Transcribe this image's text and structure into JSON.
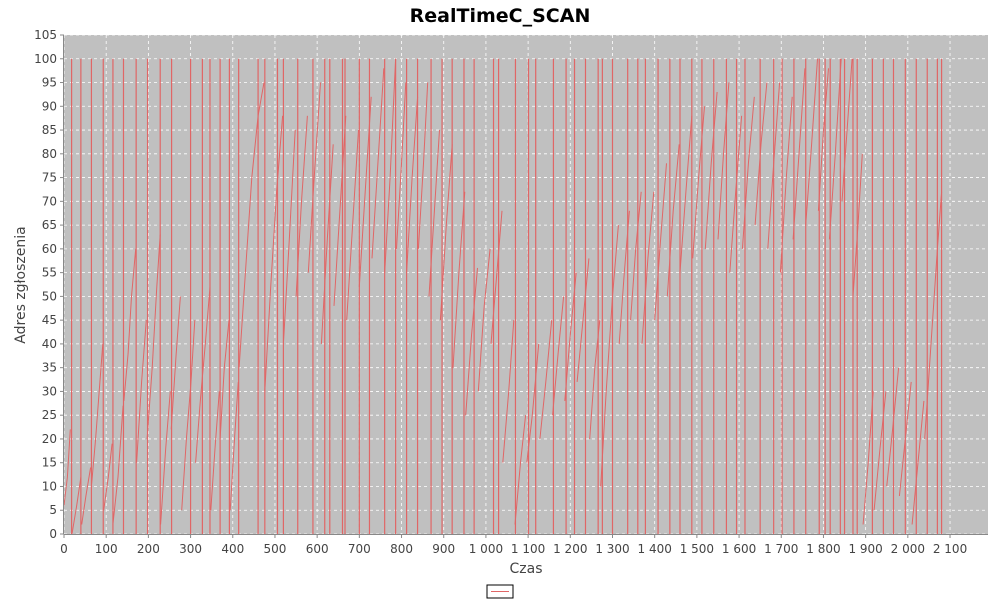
{
  "chart_data": {
    "type": "line",
    "title": "RealTimeC_SCAN",
    "xlabel": "Czas",
    "ylabel": "Adres zgłoszenia",
    "xlim": [
      0,
      2190
    ],
    "ylim": [
      0,
      105
    ],
    "x_ticks": [
      0,
      100,
      200,
      300,
      400,
      500,
      600,
      700,
      800,
      900,
      1000,
      1100,
      1200,
      1300,
      1400,
      1500,
      1600,
      1700,
      1800,
      1900,
      2000,
      2100
    ],
    "x_tick_labels": [
      "0",
      "100",
      "200",
      "300",
      "400",
      "500",
      "600",
      "700",
      "800",
      "900",
      "1 000",
      "1 100",
      "1 200",
      "1 300",
      "1 400",
      "1 500",
      "1 600",
      "1 700",
      "1 800",
      "1 900",
      "2 000",
      "2 100"
    ],
    "y_ticks": [
      0,
      5,
      10,
      15,
      20,
      25,
      30,
      35,
      40,
      45,
      50,
      55,
      60,
      65,
      70,
      75,
      80,
      85,
      90,
      95,
      100,
      105
    ],
    "grid": true,
    "legend": "bottom-center",
    "colors": {
      "series": "#e06666",
      "plot_bg": "#c0c0c0",
      "grid": "#ffffff"
    },
    "series": [
      {
        "segments": [
          [
            [
              0,
              6
            ],
            [
              8,
              12
            ],
            [
              15,
              22
            ]
          ],
          [
            [
              19,
              0
            ],
            [
              30,
              6
            ],
            [
              40,
              12
            ]
          ],
          [
            [
              42,
              2
            ],
            [
              52,
              8
            ],
            [
              63,
              14
            ]
          ],
          [
            [
              65,
              10
            ],
            [
              75,
              20
            ],
            [
              85,
              32
            ],
            [
              92,
              40
            ]
          ],
          [
            [
              94,
              5
            ],
            [
              105,
              12
            ],
            [
              114,
              19
            ]
          ],
          [
            [
              116,
              2
            ],
            [
              128,
              12
            ],
            [
              140,
              27
            ]
          ],
          [
            [
              142,
              28
            ],
            [
              152,
              38
            ],
            [
              160,
              50
            ],
            [
              170,
              60
            ]
          ],
          [
            [
              172,
              15
            ],
            [
              184,
              32
            ],
            [
              195,
              45
            ]
          ],
          [
            [
              197,
              20
            ],
            [
              209,
              35
            ],
            [
              220,
              52
            ],
            [
              228,
              63
            ]
          ],
          [
            [
              229,
              2
            ],
            [
              241,
              18
            ],
            [
              252,
              30
            ]
          ],
          [
            [
              254,
              22
            ],
            [
              266,
              38
            ],
            [
              276,
              50
            ]
          ],
          [
            [
              279,
              5
            ],
            [
              290,
              20
            ],
            [
              301,
              32
            ],
            [
              310,
              45
            ]
          ],
          [
            [
              312,
              15
            ],
            [
              323,
              28
            ],
            [
              335,
              40
            ],
            [
              346,
              52
            ]
          ],
          [
            [
              348,
              5
            ],
            [
              358,
              18
            ],
            [
              368,
              30
            ]
          ],
          [
            [
              370,
              20
            ],
            [
              380,
              35
            ],
            [
              391,
              45
            ]
          ],
          [
            [
              394,
              5
            ],
            [
              404,
              20
            ],
            [
              413,
              32
            ]
          ],
          [
            [
              415,
              35
            ],
            [
              430,
              55
            ],
            [
              445,
              75
            ],
            [
              460,
              88
            ],
            [
              474,
              95
            ]
          ],
          [
            [
              476,
              30
            ],
            [
              490,
              52
            ],
            [
              504,
              72
            ],
            [
              518,
              88
            ]
          ],
          [
            [
              520,
              40
            ],
            [
              534,
              62
            ],
            [
              548,
              85
            ]
          ],
          [
            [
              550,
              50
            ],
            [
              563,
              70
            ],
            [
              577,
              88
            ]
          ],
          [
            [
              579,
              55
            ],
            [
              593,
              75
            ],
            [
              608,
              95
            ]
          ],
          [
            [
              610,
              40
            ],
            [
              624,
              62
            ],
            [
              638,
              82
            ]
          ],
          [
            [
              640,
              48
            ],
            [
              654,
              68
            ],
            [
              668,
              88
            ]
          ],
          [
            [
              670,
              45
            ],
            [
              684,
              65
            ],
            [
              698,
              85
            ]
          ],
          [
            [
              700,
              52
            ],
            [
              714,
              72
            ],
            [
              728,
              92
            ]
          ],
          [
            [
              730,
              58
            ],
            [
              744,
              78
            ],
            [
              758,
              98
            ]
          ],
          [
            [
              760,
              55
            ],
            [
              773,
              75
            ],
            [
              786,
              100
            ]
          ],
          [
            [
              788,
              60
            ],
            [
              800,
              78
            ],
            [
              810,
              95
            ]
          ],
          [
            [
              812,
              55
            ],
            [
              825,
              75
            ],
            [
              838,
              92
            ]
          ],
          [
            [
              840,
              60
            ],
            [
              852,
              78
            ],
            [
              862,
              95
            ]
          ],
          [
            [
              865,
              50
            ],
            [
              878,
              68
            ],
            [
              890,
              85
            ]
          ],
          [
            [
              892,
              45
            ],
            [
              906,
              65
            ],
            [
              920,
              82
            ]
          ],
          [
            [
              922,
              35
            ],
            [
              936,
              55
            ],
            [
              950,
              72
            ]
          ],
          [
            [
              952,
              25
            ],
            [
              966,
              42
            ],
            [
              980,
              56
            ]
          ],
          [
            [
              982,
              30
            ],
            [
              996,
              48
            ],
            [
              1010,
              60
            ]
          ],
          [
            [
              1012,
              40
            ],
            [
              1026,
              55
            ],
            [
              1038,
              68
            ]
          ],
          [
            [
              1040,
              15
            ],
            [
              1054,
              30
            ],
            [
              1066,
              45
            ]
          ],
          [
            [
              1069,
              2
            ],
            [
              1082,
              15
            ],
            [
              1094,
              25
            ]
          ],
          [
            [
              1097,
              15
            ],
            [
              1110,
              25
            ],
            [
              1125,
              40
            ]
          ],
          [
            [
              1128,
              20
            ],
            [
              1142,
              32
            ],
            [
              1156,
              45
            ]
          ],
          [
            [
              1158,
              25
            ],
            [
              1171,
              38
            ],
            [
              1184,
              50
            ]
          ],
          [
            [
              1187,
              28
            ],
            [
              1200,
              42
            ],
            [
              1214,
              55
            ]
          ],
          [
            [
              1216,
              32
            ],
            [
              1230,
              45
            ],
            [
              1244,
              58
            ]
          ],
          [
            [
              1246,
              20
            ],
            [
              1258,
              35
            ],
            [
              1270,
              45
            ]
          ],
          [
            [
              1272,
              10
            ],
            [
              1285,
              30
            ],
            [
              1300,
              50
            ],
            [
              1314,
              65
            ]
          ],
          [
            [
              1316,
              40
            ],
            [
              1328,
              55
            ],
            [
              1340,
              68
            ]
          ],
          [
            [
              1343,
              45
            ],
            [
              1355,
              60
            ],
            [
              1368,
              72
            ]
          ],
          [
            [
              1370,
              40
            ],
            [
              1384,
              58
            ],
            [
              1398,
              72
            ]
          ],
          [
            [
              1400,
              45
            ],
            [
              1414,
              62
            ],
            [
              1428,
              78
            ]
          ],
          [
            [
              1430,
              50
            ],
            [
              1444,
              68
            ],
            [
              1458,
              82
            ]
          ],
          [
            [
              1460,
              55
            ],
            [
              1474,
              72
            ],
            [
              1488,
              88
            ]
          ],
          [
            [
              1490,
              58
            ],
            [
              1504,
              75
            ],
            [
              1518,
              90
            ]
          ],
          [
            [
              1520,
              60
            ],
            [
              1534,
              78
            ],
            [
              1548,
              93
            ]
          ],
          [
            [
              1550,
              62
            ],
            [
              1563,
              80
            ],
            [
              1576,
              95
            ]
          ],
          [
            [
              1578,
              55
            ],
            [
              1592,
              72
            ],
            [
              1606,
              88
            ]
          ],
          [
            [
              1608,
              60
            ],
            [
              1622,
              78
            ],
            [
              1636,
              92
            ]
          ],
          [
            [
              1638,
              65
            ],
            [
              1652,
              82
            ],
            [
              1666,
              95
            ]
          ],
          [
            [
              1668,
              60
            ],
            [
              1682,
              78
            ],
            [
              1696,
              95
            ]
          ],
          [
            [
              1698,
              55
            ],
            [
              1712,
              75
            ],
            [
              1726,
              92
            ]
          ],
          [
            [
              1728,
              62
            ],
            [
              1742,
              80
            ],
            [
              1756,
              98
            ]
          ],
          [
            [
              1758,
              65
            ],
            [
              1772,
              82
            ],
            [
              1786,
              100
            ]
          ],
          [
            [
              1788,
              68
            ],
            [
              1800,
              85
            ],
            [
              1812,
              98
            ]
          ],
          [
            [
              1814,
              62
            ],
            [
              1828,
              80
            ],
            [
              1842,
              100
            ]
          ],
          [
            [
              1844,
              70
            ],
            [
              1856,
              85
            ],
            [
              1868,
              100
            ]
          ],
          [
            [
              1870,
              50
            ],
            [
              1882,
              65
            ],
            [
              1892,
              80
            ]
          ],
          [
            [
              1894,
              2
            ],
            [
              1906,
              15
            ],
            [
              1918,
              30
            ]
          ],
          [
            [
              1920,
              5
            ],
            [
              1934,
              18
            ],
            [
              1948,
              30
            ]
          ],
          [
            [
              1950,
              10
            ],
            [
              1964,
              22
            ],
            [
              1978,
              35
            ]
          ],
          [
            [
              1980,
              8
            ],
            [
              1994,
              20
            ],
            [
              2008,
              32
            ]
          ],
          [
            [
              2010,
              2
            ],
            [
              2024,
              15
            ],
            [
              2038,
              28
            ]
          ],
          [
            [
              2040,
              20
            ],
            [
              2055,
              40
            ],
            [
              2070,
              60
            ],
            [
              2080,
              72
            ]
          ]
        ],
        "vertical_spikes": [
          18,
          40,
          65,
          93,
          116,
          141,
          171,
          198,
          228,
          255,
          300,
          328,
          346,
          370,
          392,
          414,
          460,
          476,
          506,
          520,
          554,
          590,
          618,
          630,
          660,
          666,
          700,
          724,
          760,
          786,
          812,
          838,
          870,
          896,
          920,
          948,
          972,
          1018,
          1030,
          1070,
          1101,
          1118,
          1160,
          1190,
          1210,
          1236,
          1266,
          1276,
          1300,
          1336,
          1360,
          1378,
          1408,
          1436,
          1460,
          1488,
          1512,
          1540,
          1570,
          1594,
          1614,
          1650,
          1682,
          1702,
          1730,
          1758,
          1790,
          1804,
          1816,
          1840,
          1850,
          1870,
          1880,
          1916,
          1942,
          1966,
          1994,
          2020,
          2046,
          2070,
          2080
        ]
      }
    ]
  }
}
